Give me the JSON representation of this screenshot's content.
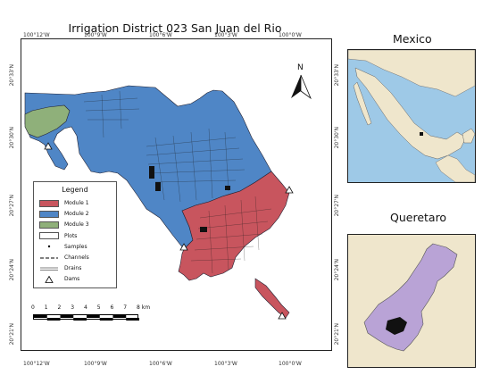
{
  "map": {
    "title": "Irrigation District 023 San Juan del Rio",
    "top_ticks": [
      "100°12'W",
      "100°9'W",
      "100°6'W",
      "100°3'W",
      "100°0'W"
    ],
    "bottom_ticks": [
      "100°12'W",
      "100°9'W",
      "100°6'W",
      "100°3'W",
      "100°0'W"
    ],
    "left_ticks": [
      "20°33'N",
      "20°30'N",
      "20°27'N",
      "20°24'N",
      "20°21'N"
    ],
    "right_ticks": [
      "20°33'N",
      "20°30'N",
      "20°27'N",
      "20°24'N",
      "20°21'N"
    ],
    "north_label": "N",
    "colors": {
      "module1": "#c8555e",
      "module2": "#4f86c6",
      "module3": "#8fb07a",
      "ocean": "#9ec9e7",
      "land": "#efe6cc",
      "queretaro": "#b9a3d6"
    }
  },
  "legend": {
    "title": "Legend",
    "items": [
      {
        "label": "Module 1",
        "kind": "fill",
        "color": "#c8555e"
      },
      {
        "label": "Module 2",
        "kind": "fill",
        "color": "#4f86c6"
      },
      {
        "label": "Module 3",
        "kind": "fill",
        "color": "#8fb07a"
      },
      {
        "label": "Plots",
        "kind": "fill",
        "color": "#ffffff"
      },
      {
        "label": "Samples",
        "kind": "dot"
      },
      {
        "label": "Channels",
        "kind": "dash"
      },
      {
        "label": "Drains",
        "kind": "double"
      },
      {
        "label": "Dams",
        "kind": "triangle"
      }
    ]
  },
  "scale_bar": {
    "labels": [
      "0",
      "1",
      "2",
      "3",
      "4",
      "5",
      "6",
      "7",
      "8 km"
    ]
  },
  "insets": {
    "mexico": {
      "title": "Mexico"
    },
    "queretaro": {
      "title": "Queretaro"
    }
  }
}
